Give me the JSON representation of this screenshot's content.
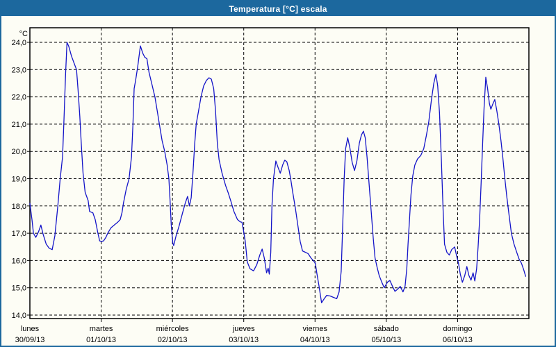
{
  "window": {
    "title": "Temperatura [°C] escala"
  },
  "colors": {
    "titlebar": "#1c689e",
    "window_border": "#1c689e",
    "background": "#fdfdf5",
    "plot_background": "#fdfdf5",
    "grid": "#000000",
    "plot_border": "#000000",
    "label_text": "#000000",
    "title_text": "#ffffff",
    "line": "#1414c8"
  },
  "chart_data": {
    "type": "line",
    "title": "Temperatura [°C] escala",
    "unit_label": "°C",
    "ylabel": "°C",
    "xlabel": "",
    "ylim": [
      14.0,
      24.0
    ],
    "grid": "dashed",
    "legend": "none",
    "y_ticks": [
      {
        "label": "24,0",
        "value": 24.0
      },
      {
        "label": "23,0",
        "value": 23.0
      },
      {
        "label": "22,0",
        "value": 22.0
      },
      {
        "label": "21,0",
        "value": 21.0
      },
      {
        "label": "20,0",
        "value": 20.0
      },
      {
        "label": "19,0",
        "value": 19.0
      },
      {
        "label": "18,0",
        "value": 18.0
      },
      {
        "label": "17,0",
        "value": 17.0
      },
      {
        "label": "16,0",
        "value": 16.0
      },
      {
        "label": "15,0",
        "value": 15.0
      },
      {
        "label": "14,0",
        "value": 14.0
      }
    ],
    "x_days": [
      {
        "name": "lunes",
        "date": "30/09/13"
      },
      {
        "name": "martes",
        "date": "01/10/13"
      },
      {
        "name": "miércoles",
        "date": "02/10/13"
      },
      {
        "name": "jueves",
        "date": "03/10/13"
      },
      {
        "name": "viernes",
        "date": "04/10/13"
      },
      {
        "name": "sábado",
        "date": "05/10/13"
      },
      {
        "name": "domingo",
        "date": "06/10/13"
      }
    ],
    "series": [
      {
        "name": "Temperatura",
        "color": "#1414c8",
        "x_unit": "hours_from_first_day_midnight",
        "points": [
          [
            0,
            18.1
          ],
          [
            0.7,
            17.5
          ],
          [
            1.2,
            17.0
          ],
          [
            2.0,
            16.85
          ],
          [
            2.9,
            17.05
          ],
          [
            3.7,
            17.3
          ],
          [
            4.5,
            16.95
          ],
          [
            5.5,
            16.6
          ],
          [
            6.5,
            16.45
          ],
          [
            7.5,
            16.4
          ],
          [
            8.4,
            16.9
          ],
          [
            9.4,
            18.0
          ],
          [
            10.2,
            19.0
          ],
          [
            11.0,
            19.8
          ],
          [
            11.5,
            21.2
          ],
          [
            12.0,
            22.8
          ],
          [
            12.5,
            24.0
          ],
          [
            13.1,
            23.85
          ],
          [
            14.0,
            23.5
          ],
          [
            15.0,
            23.2
          ],
          [
            15.7,
            23.0
          ],
          [
            16.2,
            22.3
          ],
          [
            16.8,
            21.3
          ],
          [
            17.3,
            20.3
          ],
          [
            17.9,
            19.2
          ],
          [
            18.6,
            18.5
          ],
          [
            19.6,
            18.2
          ],
          [
            20.1,
            17.8
          ],
          [
            21.2,
            17.75
          ],
          [
            22.0,
            17.5
          ],
          [
            22.9,
            17.0
          ],
          [
            23.5,
            16.72
          ],
          [
            24.1,
            16.7
          ],
          [
            24.8,
            16.72
          ],
          [
            25.6,
            16.85
          ],
          [
            26.2,
            17.0
          ],
          [
            27.3,
            17.2
          ],
          [
            28.4,
            17.3
          ],
          [
            29.5,
            17.4
          ],
          [
            30.4,
            17.5
          ],
          [
            31.0,
            17.75
          ],
          [
            31.5,
            18.1
          ],
          [
            32.4,
            18.6
          ],
          [
            33.4,
            19.0
          ],
          [
            34.2,
            19.8
          ],
          [
            34.7,
            21.0
          ],
          [
            35.1,
            22.3
          ],
          [
            35.6,
            22.6
          ],
          [
            36.3,
            23.1
          ],
          [
            37.2,
            23.87
          ],
          [
            38.0,
            23.6
          ],
          [
            38.7,
            23.45
          ],
          [
            39.4,
            23.4
          ],
          [
            40.1,
            22.9
          ],
          [
            41.0,
            22.5
          ],
          [
            42.1,
            22.0
          ],
          [
            43.0,
            21.4
          ],
          [
            43.6,
            21.0
          ],
          [
            44.5,
            20.4
          ],
          [
            45.4,
            20.0
          ],
          [
            46.2,
            19.5
          ],
          [
            46.8,
            19.0
          ],
          [
            47.2,
            18.2
          ],
          [
            47.6,
            17.3
          ],
          [
            48.1,
            16.65
          ],
          [
            48.4,
            16.55
          ],
          [
            49.2,
            16.9
          ],
          [
            50.2,
            17.25
          ],
          [
            51.3,
            17.7
          ],
          [
            52.3,
            18.1
          ],
          [
            53.1,
            18.35
          ],
          [
            53.7,
            18.0
          ],
          [
            54.3,
            18.3
          ],
          [
            54.9,
            19.2
          ],
          [
            55.5,
            20.3
          ],
          [
            56.0,
            21.0
          ],
          [
            56.8,
            21.5
          ],
          [
            57.6,
            22.0
          ],
          [
            58.5,
            22.4
          ],
          [
            59.4,
            22.6
          ],
          [
            60.3,
            22.7
          ],
          [
            61.1,
            22.65
          ],
          [
            61.9,
            22.3
          ],
          [
            62.5,
            21.5
          ],
          [
            63.1,
            20.3
          ],
          [
            63.7,
            19.7
          ],
          [
            64.7,
            19.2
          ],
          [
            65.9,
            18.75
          ],
          [
            66.7,
            18.5
          ],
          [
            67.6,
            18.2
          ],
          [
            68.7,
            17.8
          ],
          [
            69.9,
            17.5
          ],
          [
            70.8,
            17.42
          ],
          [
            71.4,
            17.4
          ],
          [
            72.0,
            17.05
          ],
          [
            72.5,
            16.7
          ],
          [
            73.2,
            15.95
          ],
          [
            74.1,
            15.7
          ],
          [
            75.3,
            15.62
          ],
          [
            76.4,
            15.85
          ],
          [
            77.4,
            16.2
          ],
          [
            78.2,
            16.42
          ],
          [
            78.9,
            16.1
          ],
          [
            79.7,
            15.55
          ],
          [
            80.2,
            15.72
          ],
          [
            80.6,
            15.5
          ],
          [
            81.1,
            16.3
          ],
          [
            81.5,
            18.0
          ],
          [
            82.0,
            19.0
          ],
          [
            82.8,
            19.65
          ],
          [
            83.6,
            19.4
          ],
          [
            84.3,
            19.2
          ],
          [
            85.1,
            19.5
          ],
          [
            85.8,
            19.68
          ],
          [
            86.5,
            19.62
          ],
          [
            87.3,
            19.3
          ],
          [
            87.8,
            19.0
          ],
          [
            88.5,
            18.5
          ],
          [
            89.4,
            17.9
          ],
          [
            90.2,
            17.3
          ],
          [
            91.0,
            16.7
          ],
          [
            91.8,
            16.35
          ],
          [
            92.8,
            16.3
          ],
          [
            93.7,
            16.25
          ],
          [
            94.6,
            16.1
          ],
          [
            95.4,
            16.0
          ],
          [
            96.1,
            15.9
          ],
          [
            96.6,
            15.55
          ],
          [
            97.3,
            15.1
          ],
          [
            98.2,
            14.45
          ],
          [
            99.1,
            14.6
          ],
          [
            99.9,
            14.72
          ],
          [
            101.1,
            14.7
          ],
          [
            102.2,
            14.65
          ],
          [
            103.3,
            14.6
          ],
          [
            104.1,
            14.85
          ],
          [
            104.8,
            15.6
          ],
          [
            105.3,
            17.2
          ],
          [
            105.8,
            19.0
          ],
          [
            106.3,
            20.1
          ],
          [
            107.0,
            20.5
          ],
          [
            107.7,
            20.15
          ],
          [
            108.5,
            19.6
          ],
          [
            109.3,
            19.3
          ],
          [
            110.1,
            19.65
          ],
          [
            110.9,
            20.3
          ],
          [
            111.6,
            20.6
          ],
          [
            112.3,
            20.74
          ],
          [
            112.9,
            20.5
          ],
          [
            113.5,
            19.8
          ],
          [
            114.2,
            18.8
          ],
          [
            114.9,
            17.8
          ],
          [
            115.6,
            16.8
          ],
          [
            116.2,
            16.1
          ],
          [
            116.9,
            15.75
          ],
          [
            117.6,
            15.45
          ],
          [
            118.5,
            15.2
          ],
          [
            119.3,
            15.0
          ],
          [
            119.9,
            15.12
          ],
          [
            120.5,
            15.22
          ],
          [
            121.2,
            15.27
          ],
          [
            122.1,
            15.05
          ],
          [
            122.9,
            14.87
          ],
          [
            123.8,
            14.95
          ],
          [
            124.7,
            15.05
          ],
          [
            125.6,
            14.85
          ],
          [
            126.3,
            15.05
          ],
          [
            126.9,
            15.7
          ],
          [
            127.3,
            16.6
          ],
          [
            127.8,
            17.5
          ],
          [
            128.3,
            18.4
          ],
          [
            128.9,
            19.1
          ],
          [
            129.6,
            19.5
          ],
          [
            130.5,
            19.72
          ],
          [
            131.6,
            19.85
          ],
          [
            132.6,
            20.1
          ],
          [
            133.5,
            20.6
          ],
          [
            134.3,
            21.1
          ],
          [
            135.2,
            21.9
          ],
          [
            136.0,
            22.5
          ],
          [
            136.7,
            22.83
          ],
          [
            137.3,
            22.4
          ],
          [
            137.9,
            21.4
          ],
          [
            138.5,
            19.8
          ],
          [
            139.1,
            17.9
          ],
          [
            139.6,
            16.6
          ],
          [
            140.4,
            16.3
          ],
          [
            141.2,
            16.2
          ],
          [
            142.0,
            16.4
          ],
          [
            143.0,
            16.5
          ],
          [
            143.6,
            16.2
          ],
          [
            144.3,
            15.9
          ],
          [
            144.9,
            15.5
          ],
          [
            145.6,
            15.2
          ],
          [
            146.4,
            15.45
          ],
          [
            147.1,
            15.78
          ],
          [
            147.8,
            15.45
          ],
          [
            148.5,
            15.28
          ],
          [
            149.2,
            15.55
          ],
          [
            149.8,
            15.25
          ],
          [
            150.4,
            15.7
          ],
          [
            150.9,
            16.5
          ],
          [
            151.4,
            17.5
          ],
          [
            151.9,
            18.8
          ],
          [
            152.4,
            20.2
          ],
          [
            152.9,
            21.6
          ],
          [
            153.5,
            22.72
          ],
          [
            154.1,
            22.3
          ],
          [
            154.7,
            21.75
          ],
          [
            155.2,
            21.55
          ],
          [
            155.9,
            21.75
          ],
          [
            156.5,
            21.9
          ],
          [
            157.2,
            21.5
          ],
          [
            157.9,
            21.0
          ],
          [
            158.6,
            20.4
          ],
          [
            159.2,
            19.8
          ],
          [
            159.9,
            19.0
          ],
          [
            160.6,
            18.3
          ],
          [
            161.4,
            17.6
          ],
          [
            162.1,
            17.0
          ],
          [
            163.0,
            16.6
          ],
          [
            163.9,
            16.3
          ],
          [
            164.7,
            16.05
          ],
          [
            165.5,
            15.9
          ],
          [
            166.3,
            15.65
          ],
          [
            166.9,
            15.42
          ]
        ]
      }
    ]
  }
}
